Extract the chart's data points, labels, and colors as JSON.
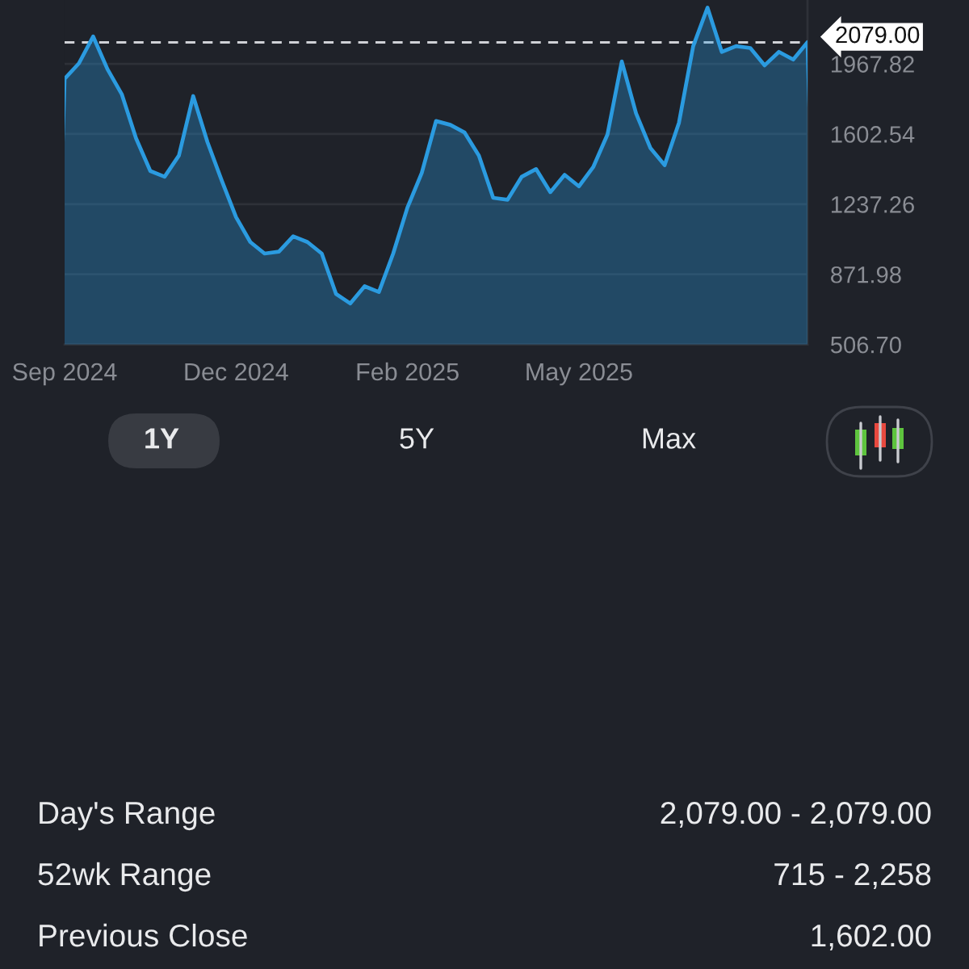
{
  "chart_data": {
    "type": "area",
    "categories": [
      "Sep 2024",
      null,
      null,
      null,
      null,
      null,
      null,
      null,
      null,
      null,
      null,
      null,
      "Dec 2024",
      null,
      null,
      null,
      null,
      null,
      null,
      null,
      null,
      null,
      null,
      null,
      "Feb 2025",
      null,
      null,
      null,
      null,
      null,
      null,
      null,
      null,
      null,
      null,
      null,
      "May 2025",
      null,
      null,
      null,
      null,
      null,
      null,
      null,
      null,
      null,
      null,
      null,
      null,
      null,
      null,
      null,
      null
    ],
    "values": [
      1890,
      1970,
      2110,
      1940,
      1810,
      1580,
      1410,
      1380,
      1490,
      1800,
      1560,
      1360,
      1170,
      1040,
      980,
      990,
      1070,
      1040,
      980,
      770,
      720,
      810,
      780,
      980,
      1220,
      1400,
      1670,
      1650,
      1610,
      1490,
      1270,
      1260,
      1380,
      1420,
      1300,
      1390,
      1330,
      1430,
      1600,
      1980,
      1710,
      1530,
      1440,
      1660,
      2060,
      2260,
      2030,
      2060,
      2050,
      1960,
      2030,
      1990,
      2080
    ],
    "color": "#2b9be0",
    "ylim": [
      506.7,
      2300
    ],
    "yticks": [
      {
        "value": 506.7,
        "label": "506.70"
      },
      871.98,
      1237.26,
      1602.54,
      1967.82
    ],
    "grid": "y",
    "ref_lines": [
      {
        "axis": "y",
        "value": 2079,
        "label": "2079.00",
        "color": "#cfd1d6",
        "line_style": "dashed"
      }
    ],
    "annotations": [
      "1Y",
      "5Y",
      "Max",
      "Day's Range",
      "2,079.00 - 2,079.00",
      "52wk Range",
      "715 - 2,258",
      "Previous Close",
      "1,602.00"
    ]
  }
}
